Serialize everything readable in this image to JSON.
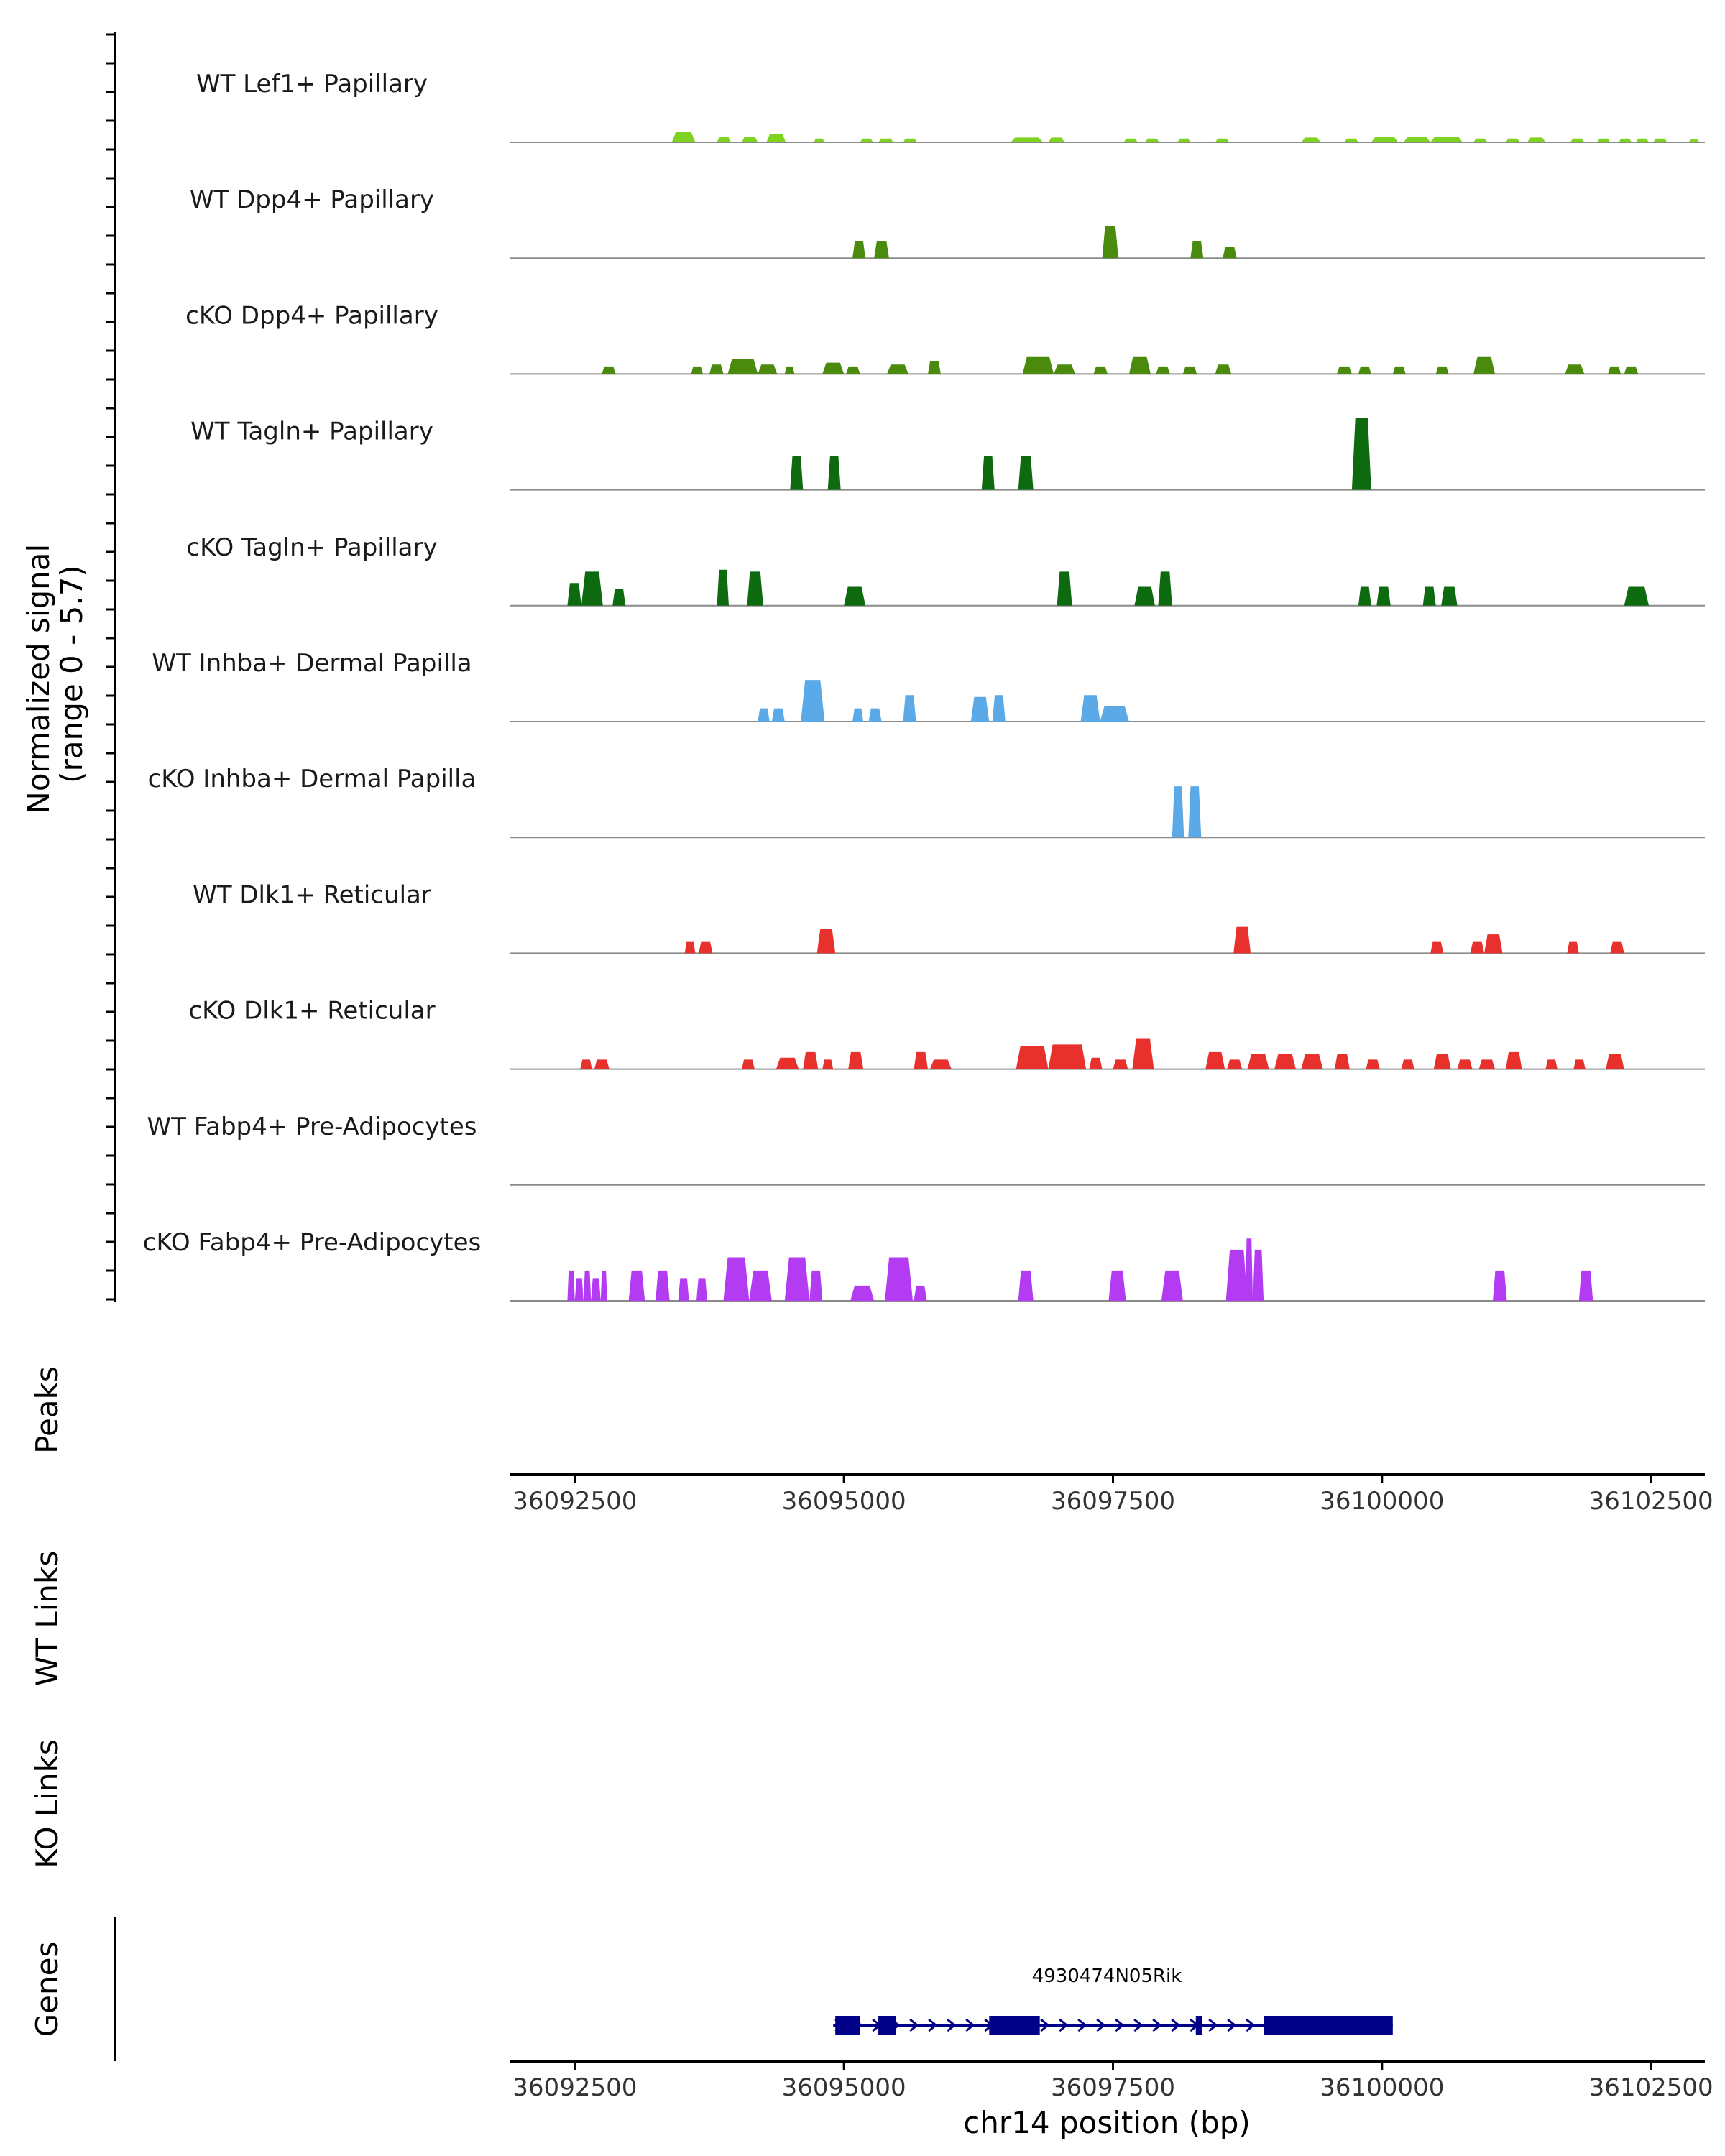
{
  "chart_data": {
    "type": "area",
    "title": "",
    "chromosome": "chr14",
    "xlabel": "chr14 position (bp)",
    "x_range": [
      36091900,
      36103000
    ],
    "x_ticks": [
      36092500,
      36095000,
      36097500,
      36100000,
      36102500
    ],
    "x_tick_labels": [
      "36092500",
      "36095000",
      "36097500",
      "36100000",
      "36102500"
    ],
    "y_range": [
      0,
      5.7
    ],
    "signal_label_line1": "Normalized signal",
    "signal_label_line2": "(range 0 - 5.7)",
    "colors": {
      "lef1": "#7ED321",
      "papillary": "#4A8A0C",
      "tagln": "#0E6A0E",
      "dp": "#5BA9E6",
      "dlk1": "#E8302D",
      "fabp4": "#B33CF2",
      "gene": "#000088",
      "axis": "#000000",
      "baseline": "#8a8a8a"
    },
    "series": [
      {
        "name": "WT Lef1+ Papillary",
        "color_key": "lef1",
        "peaks": [
          [
            36093400,
            36093620,
            0.55
          ],
          [
            36093820,
            36093950,
            0.3
          ],
          [
            36094050,
            36094200,
            0.3
          ],
          [
            36094280,
            36094460,
            0.45
          ],
          [
            36094720,
            36094820,
            0.2
          ],
          [
            36095150,
            36095270,
            0.2
          ],
          [
            36095320,
            36095460,
            0.2
          ],
          [
            36095550,
            36095680,
            0.2
          ],
          [
            36096550,
            36096850,
            0.25
          ],
          [
            36096900,
            36097050,
            0.25
          ],
          [
            36097600,
            36097730,
            0.2
          ],
          [
            36097800,
            36097930,
            0.2
          ],
          [
            36098100,
            36098220,
            0.2
          ],
          [
            36098450,
            36098580,
            0.2
          ],
          [
            36099250,
            36099430,
            0.25
          ],
          [
            36099650,
            36099780,
            0.2
          ],
          [
            36099900,
            36100150,
            0.3
          ],
          [
            36100200,
            36100450,
            0.3
          ],
          [
            36100450,
            36100750,
            0.3
          ],
          [
            36100850,
            36100980,
            0.2
          ],
          [
            36101150,
            36101280,
            0.2
          ],
          [
            36101350,
            36101520,
            0.25
          ],
          [
            36101750,
            36101880,
            0.2
          ],
          [
            36102000,
            36102120,
            0.2
          ],
          [
            36102200,
            36102320,
            0.2
          ],
          [
            36102360,
            36102480,
            0.2
          ],
          [
            36102520,
            36102650,
            0.2
          ],
          [
            36102850,
            36102950,
            0.15
          ]
        ]
      },
      {
        "name": "WT Dpp4+ Papillary",
        "color_key": "papillary",
        "peaks": [
          [
            36095080,
            36095200,
            0.9
          ],
          [
            36095280,
            36095420,
            0.9
          ],
          [
            36097400,
            36097550,
            1.7
          ],
          [
            36098220,
            36098340,
            0.9
          ],
          [
            36098520,
            36098650,
            0.6
          ]
        ]
      },
      {
        "name": "cKO Dpp4+ Papillary",
        "color_key": "papillary",
        "peaks": [
          [
            36092750,
            36092880,
            0.4
          ],
          [
            36093580,
            36093690,
            0.4
          ],
          [
            36093750,
            36093880,
            0.5
          ],
          [
            36093920,
            36094200,
            0.8
          ],
          [
            36094200,
            36094380,
            0.5
          ],
          [
            36094450,
            36094540,
            0.4
          ],
          [
            36094800,
            36095000,
            0.6
          ],
          [
            36095020,
            36095150,
            0.4
          ],
          [
            36095400,
            36095600,
            0.5
          ],
          [
            36095780,
            36095900,
            0.7
          ],
          [
            36096660,
            36096950,
            0.9
          ],
          [
            36096950,
            36097150,
            0.5
          ],
          [
            36097320,
            36097450,
            0.4
          ],
          [
            36097650,
            36097850,
            0.9
          ],
          [
            36097900,
            36098030,
            0.4
          ],
          [
            36098150,
            36098280,
            0.4
          ],
          [
            36098450,
            36098600,
            0.5
          ],
          [
            36099580,
            36099720,
            0.4
          ],
          [
            36099780,
            36099900,
            0.4
          ],
          [
            36100100,
            36100220,
            0.4
          ],
          [
            36100500,
            36100620,
            0.4
          ],
          [
            36100850,
            36101050,
            0.9
          ],
          [
            36101700,
            36101880,
            0.5
          ],
          [
            36102100,
            36102220,
            0.4
          ],
          [
            36102250,
            36102380,
            0.4
          ]
        ]
      },
      {
        "name": "WT Tagln+ Papillary",
        "color_key": "tagln",
        "peaks": [
          [
            36094500,
            36094620,
            1.8
          ],
          [
            36094850,
            36094970,
            1.8
          ],
          [
            36096280,
            36096400,
            1.8
          ],
          [
            36096620,
            36096760,
            1.8
          ],
          [
            36099720,
            36099900,
            3.8
          ]
        ]
      },
      {
        "name": "cKO Tagln+ Papillary",
        "color_key": "tagln",
        "peaks": [
          [
            36092430,
            36092560,
            1.2
          ],
          [
            36092560,
            36092760,
            1.8
          ],
          [
            36092850,
            36092970,
            0.9
          ],
          [
            36093820,
            36093930,
            1.9
          ],
          [
            36094100,
            36094250,
            1.8
          ],
          [
            36095000,
            36095200,
            1.0
          ],
          [
            36096980,
            36097120,
            1.8
          ],
          [
            36097700,
            36097890,
            1.0
          ],
          [
            36097920,
            36098050,
            1.8
          ],
          [
            36099780,
            36099900,
            1.0
          ],
          [
            36099950,
            36100080,
            1.0
          ],
          [
            36100380,
            36100500,
            1.0
          ],
          [
            36100550,
            36100700,
            1.0
          ],
          [
            36102250,
            36102480,
            1.0
          ]
        ]
      },
      {
        "name": "WT Inhba+ Dermal Papilla",
        "color_key": "dp",
        "peaks": [
          [
            36094200,
            36094310,
            0.7
          ],
          [
            36094330,
            36094450,
            0.7
          ],
          [
            36094600,
            36094820,
            2.2
          ],
          [
            36095080,
            36095180,
            0.7
          ],
          [
            36095230,
            36095350,
            0.7
          ],
          [
            36095550,
            36095670,
            1.4
          ],
          [
            36096180,
            36096350,
            1.3
          ],
          [
            36096380,
            36096500,
            1.4
          ],
          [
            36097200,
            36097380,
            1.4
          ],
          [
            36097380,
            36097650,
            0.8
          ]
        ]
      },
      {
        "name": "cKO Inhba+ Dermal Papilla",
        "color_key": "dp",
        "peaks": [
          [
            36098050,
            36098160,
            2.7
          ],
          [
            36098200,
            36098320,
            2.7
          ]
        ]
      },
      {
        "name": "WT Dlk1+ Reticular",
        "color_key": "dlk1",
        "peaks": [
          [
            36093520,
            36093620,
            0.6
          ],
          [
            36093650,
            36093780,
            0.6
          ],
          [
            36094750,
            36094920,
            1.3
          ],
          [
            36098620,
            36098780,
            1.4
          ],
          [
            36100450,
            36100570,
            0.6
          ],
          [
            36100820,
            36100950,
            0.6
          ],
          [
            36100950,
            36101120,
            1.0
          ],
          [
            36101720,
            36101830,
            0.6
          ],
          [
            36102120,
            36102250,
            0.6
          ]
        ]
      },
      {
        "name": "cKO Dlk1+ Reticular",
        "color_key": "dlk1",
        "peaks": [
          [
            36092550,
            36092660,
            0.5
          ],
          [
            36092680,
            36092820,
            0.5
          ],
          [
            36094050,
            36094170,
            0.5
          ],
          [
            36094370,
            36094580,
            0.6
          ],
          [
            36094620,
            36094760,
            0.9
          ],
          [
            36094800,
            36094900,
            0.5
          ],
          [
            36095040,
            36095180,
            0.9
          ],
          [
            36095650,
            36095780,
            0.9
          ],
          [
            36095800,
            36096000,
            0.5
          ],
          [
            36096600,
            36096900,
            1.2
          ],
          [
            36096900,
            36097250,
            1.3
          ],
          [
            36097280,
            36097400,
            0.6
          ],
          [
            36097500,
            36097640,
            0.5
          ],
          [
            36097680,
            36097880,
            1.6
          ],
          [
            36098360,
            36098540,
            0.9
          ],
          [
            36098560,
            36098700,
            0.5
          ],
          [
            36098750,
            36098950,
            0.8
          ],
          [
            36099000,
            36099200,
            0.8
          ],
          [
            36099250,
            36099450,
            0.8
          ],
          [
            36099560,
            36099700,
            0.8
          ],
          [
            36099850,
            36099980,
            0.5
          ],
          [
            36100180,
            36100300,
            0.5
          ],
          [
            36100480,
            36100640,
            0.8
          ],
          [
            36100700,
            36100840,
            0.5
          ],
          [
            36100900,
            36101050,
            0.5
          ],
          [
            36101150,
            36101300,
            0.9
          ],
          [
            36101520,
            36101630,
            0.5
          ],
          [
            36101780,
            36101890,
            0.5
          ],
          [
            36102080,
            36102250,
            0.8
          ]
        ]
      },
      {
        "name": "WT Fabp4+ Pre-Adipocytes",
        "color_key": "fabp4",
        "peaks": []
      },
      {
        "name": "cKO Fabp4+ Pre-Adipocytes",
        "color_key": "fabp4",
        "peaks": [
          [
            36092430,
            36092500,
            1.6
          ],
          [
            36092500,
            36092580,
            1.2
          ],
          [
            36092580,
            36092650,
            1.6
          ],
          [
            36092650,
            36092740,
            1.2
          ],
          [
            36092740,
            36092800,
            1.6
          ],
          [
            36093000,
            36093150,
            1.6
          ],
          [
            36093250,
            36093380,
            1.6
          ],
          [
            36093460,
            36093560,
            1.2
          ],
          [
            36093630,
            36093730,
            1.2
          ],
          [
            36093880,
            36094120,
            2.3
          ],
          [
            36094120,
            36094330,
            1.6
          ],
          [
            36094450,
            36094680,
            2.3
          ],
          [
            36094680,
            36094800,
            1.6
          ],
          [
            36095060,
            36095280,
            0.8
          ],
          [
            36095380,
            36095640,
            2.3
          ],
          [
            36095650,
            36095770,
            0.8
          ],
          [
            36096620,
            36096760,
            1.6
          ],
          [
            36097460,
            36097620,
            1.6
          ],
          [
            36097950,
            36098150,
            1.6
          ],
          [
            36098550,
            36098750,
            2.7
          ],
          [
            36098730,
            36098800,
            3.3
          ],
          [
            36098800,
            36098900,
            2.7
          ],
          [
            36101030,
            36101160,
            1.6
          ],
          [
            36101830,
            36101960,
            1.6
          ]
        ]
      }
    ],
    "panels": {
      "peaks": "Peaks",
      "wt_links": "WT Links",
      "ko_links": "KO Links",
      "genes": "Genes"
    },
    "gene": {
      "name": "4930474N05Rik",
      "start": 36094900,
      "end": 36100100,
      "strand": "+",
      "exons": [
        [
          36094920,
          36095150
        ],
        [
          36095320,
          36095480
        ],
        [
          36096350,
          36096820
        ],
        [
          36098270,
          36098330
        ],
        [
          36098900,
          36100100
        ]
      ]
    }
  }
}
